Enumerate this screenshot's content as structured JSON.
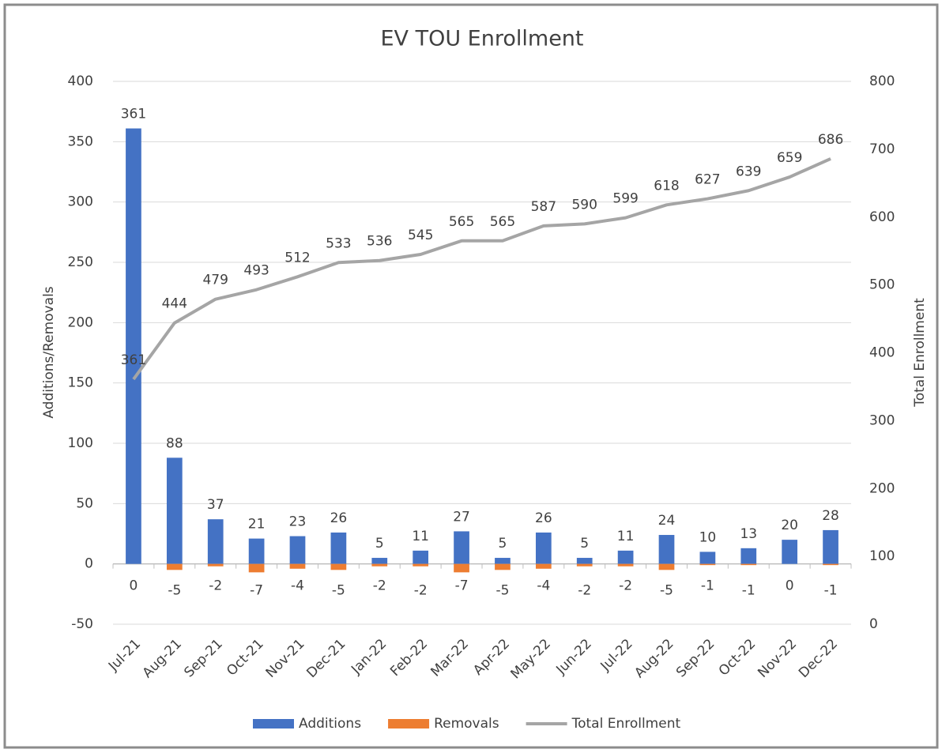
{
  "chart_data": {
    "type": "bar",
    "title": "EV TOU Enrollment",
    "y_label": "Additions/Removals",
    "y2_label": "Total Enrollment",
    "categories": [
      "Jul-21",
      "Aug-21",
      "Sep-21",
      "Oct-21",
      "Nov-21",
      "Dec-21",
      "Jan-22",
      "Feb-22",
      "Mar-22",
      "Apr-22",
      "May-22",
      "Jun-22",
      "Jul-22",
      "Aug-22",
      "Sep-22",
      "Oct-22",
      "Nov-22",
      "Dec-22"
    ],
    "series": [
      {
        "name": "Additions",
        "color": "#4472c4",
        "type": "bar",
        "values": [
          361,
          88,
          37,
          21,
          23,
          26,
          5,
          11,
          27,
          5,
          26,
          5,
          11,
          24,
          10,
          13,
          20,
          28
        ]
      },
      {
        "name": "Removals",
        "color": "#ed7d31",
        "type": "bar",
        "values": [
          0,
          -5,
          -2,
          -7,
          -4,
          -5,
          -2,
          -2,
          -7,
          -5,
          -4,
          -2,
          -2,
          -5,
          -1,
          -1,
          0,
          -1
        ]
      },
      {
        "name": "Total Enrollment",
        "color": "#a5a5a5",
        "type": "line",
        "axis": "y2",
        "values": [
          361,
          444,
          479,
          493,
          512,
          533,
          536,
          545,
          565,
          565,
          587,
          590,
          599,
          618,
          627,
          639,
          659,
          686
        ]
      }
    ],
    "ylim": [
      -50,
      400
    ],
    "yticks": [
      -50,
      0,
      50,
      100,
      150,
      200,
      250,
      300,
      350,
      400
    ],
    "y2lim": [
      0,
      800
    ],
    "y2ticks": [
      0,
      100,
      200,
      300,
      400,
      500,
      600,
      700,
      800
    ],
    "grid": true,
    "legend": "bottom"
  }
}
